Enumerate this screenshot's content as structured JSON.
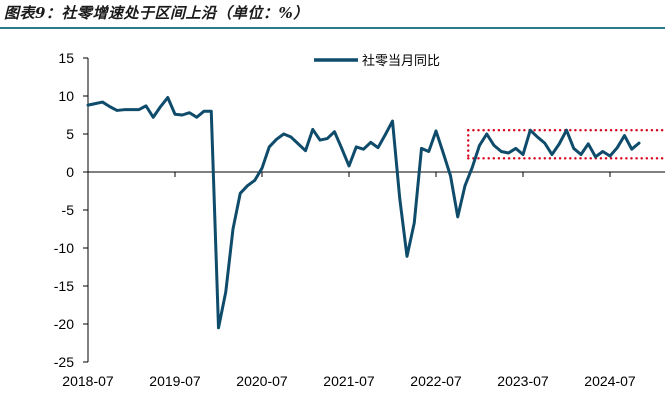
{
  "figure": {
    "title": "图表9：社零增速处于区间上沿（单位：%）"
  },
  "colors": {
    "series": "#0f4c6b",
    "band": "#d9001b",
    "rule": "#2a7d8a"
  },
  "chart_data": {
    "type": "line",
    "title": "",
    "xlabel": "",
    "ylabel": "",
    "ylim": [
      -25,
      15
    ],
    "yticks": [
      15,
      10,
      5,
      0,
      -5,
      -10,
      -15,
      -20,
      -25
    ],
    "xticks": [
      "2018-07",
      "2019-07",
      "2020-07",
      "2021-07",
      "2022-07",
      "2023-07",
      "2024-07"
    ],
    "grid": false,
    "legend": "top-center",
    "x_start": "2018-07",
    "x": [
      "2018-07",
      "2018-08",
      "2018-09",
      "2018-10",
      "2018-11",
      "2018-12",
      "2019-01",
      "2019-02",
      "2019-03",
      "2019-04",
      "2019-05",
      "2019-06",
      "2019-07",
      "2019-08",
      "2019-09",
      "2019-10",
      "2019-11",
      "2019-12",
      "2020-01",
      "2020-02",
      "2020-03",
      "2020-04",
      "2020-05",
      "2020-06",
      "2020-07",
      "2020-08",
      "2020-09",
      "2020-10",
      "2020-11",
      "2020-12",
      "2021-01",
      "2021-02",
      "2021-03",
      "2021-04",
      "2021-05",
      "2021-06",
      "2021-07",
      "2021-08",
      "2021-09",
      "2021-10",
      "2021-11",
      "2021-12",
      "2022-01",
      "2022-02",
      "2022-03",
      "2022-04",
      "2022-05",
      "2022-06",
      "2022-07",
      "2022-08",
      "2022-09",
      "2022-10",
      "2022-11",
      "2022-12",
      "2023-01",
      "2023-02",
      "2023-03",
      "2023-04",
      "2023-05",
      "2023-06",
      "2023-07",
      "2023-08",
      "2023-09",
      "2023-10",
      "2023-11",
      "2023-12",
      "2024-01",
      "2024-02",
      "2024-03",
      "2024-04",
      "2024-05",
      "2024-06",
      "2024-07",
      "2024-08",
      "2024-09",
      "2024-10",
      "2024-11"
    ],
    "series": [
      {
        "name": "社零当月同比",
        "values": [
          8.8,
          9.0,
          9.2,
          8.6,
          8.1,
          8.2,
          8.2,
          8.2,
          8.7,
          7.2,
          8.6,
          9.8,
          7.6,
          7.5,
          7.8,
          7.2,
          8.0,
          8.0,
          -20.5,
          -15.8,
          -7.5,
          -2.8,
          -1.8,
          -1.1,
          0.5,
          3.3,
          4.3,
          5.0,
          4.6,
          3.7,
          2.8,
          5.6,
          4.2,
          4.4,
          5.3,
          3.1,
          0.8,
          3.3,
          3.0,
          3.9,
          3.2,
          4.9,
          6.7,
          -3.5,
          -11.1,
          -6.7,
          3.1,
          2.7,
          5.4,
          2.5,
          -0.5,
          -5.9,
          -1.8,
          0.6,
          3.5,
          5.0,
          3.5,
          2.7,
          2.5,
          3.1,
          2.3,
          5.5,
          4.6,
          3.8,
          2.3,
          3.7,
          5.5,
          3.1,
          2.3,
          3.7,
          2.0,
          2.7,
          2.1,
          3.2,
          4.8,
          3.0,
          3.8
        ]
      }
    ],
    "band": {
      "upper": 5.5,
      "lower": 1.8,
      "from": "2022-12"
    }
  }
}
